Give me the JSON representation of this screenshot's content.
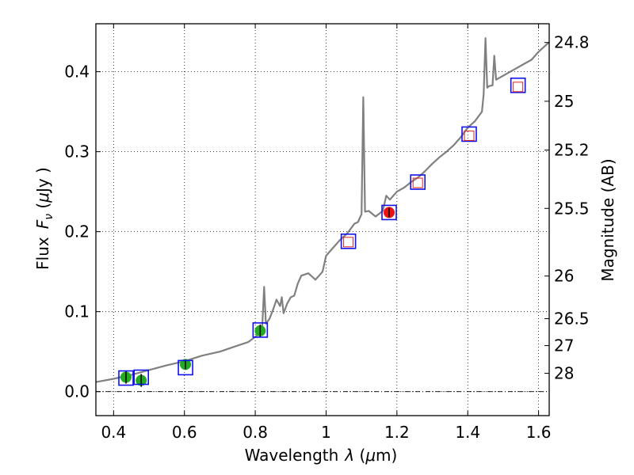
{
  "chart_data": {
    "type": "line",
    "xlabel": "Wavelength",
    "xlabel_symbol": "λ",
    "xlabel_unit_open": " (",
    "xlabel_unit_mu": "μ",
    "xlabel_unit_rest": "m)",
    "ylabel": "Flux",
    "ylabel_symbol": "F",
    "ylabel_subscript": "ν",
    "ylabel_unit_open": "  (",
    "ylabel_unit_mu": "μ",
    "ylabel_unit_rest": "Jy )",
    "y2label": "Magnitude (AB)",
    "xlim": [
      0.35,
      1.63
    ],
    "ylim": [
      -0.03,
      0.46
    ],
    "grid": true,
    "x_ticks": [
      {
        "value": 0.4,
        "label": "0.4"
      },
      {
        "value": 0.6,
        "label": "0.6"
      },
      {
        "value": 0.8,
        "label": "0.8"
      },
      {
        "value": 1.0,
        "label": "1"
      },
      {
        "value": 1.2,
        "label": "1.2"
      },
      {
        "value": 1.4,
        "label": "1.4"
      },
      {
        "value": 1.6,
        "label": "1.6"
      }
    ],
    "y_ticks": [
      {
        "value": 0.0,
        "label": "0.0"
      },
      {
        "value": 0.1,
        "label": "0.1"
      },
      {
        "value": 0.2,
        "label": "0.2"
      },
      {
        "value": 0.3,
        "label": "0.3"
      },
      {
        "value": 0.4,
        "label": "0.4"
      }
    ],
    "mag_ticks": [
      {
        "value": 24.8,
        "label": "24.8"
      },
      {
        "value": 25.0,
        "label": "25"
      },
      {
        "value": 25.2,
        "label": "25.2"
      },
      {
        "value": 25.5,
        "label": "25.5"
      },
      {
        "value": 26.0,
        "label": "26"
      },
      {
        "value": 26.5,
        "label": "26.5"
      },
      {
        "value": 27.0,
        "label": "27"
      },
      {
        "value": 28.0,
        "label": "28"
      }
    ],
    "series": [
      {
        "name": "model-spectrum",
        "color": "#808080",
        "points": [
          [
            0.35,
            0.012
          ],
          [
            0.4,
            0.016
          ],
          [
            0.45,
            0.021
          ],
          [
            0.5,
            0.027
          ],
          [
            0.55,
            0.033
          ],
          [
            0.6,
            0.038
          ],
          [
            0.65,
            0.045
          ],
          [
            0.7,
            0.05
          ],
          [
            0.74,
            0.056
          ],
          [
            0.78,
            0.062
          ],
          [
            0.81,
            0.072
          ],
          [
            0.82,
            0.083
          ],
          [
            0.825,
            0.131
          ],
          [
            0.83,
            0.085
          ],
          [
            0.84,
            0.091
          ],
          [
            0.85,
            0.102
          ],
          [
            0.86,
            0.115
          ],
          [
            0.87,
            0.107
          ],
          [
            0.875,
            0.118
          ],
          [
            0.88,
            0.098
          ],
          [
            0.89,
            0.11
          ],
          [
            0.9,
            0.118
          ],
          [
            0.91,
            0.12
          ],
          [
            0.92,
            0.135
          ],
          [
            0.93,
            0.145
          ],
          [
            0.95,
            0.148
          ],
          [
            0.97,
            0.14
          ],
          [
            0.99,
            0.15
          ],
          [
            1.0,
            0.17
          ],
          [
            1.02,
            0.18
          ],
          [
            1.04,
            0.19
          ],
          [
            1.06,
            0.198
          ],
          [
            1.08,
            0.21
          ],
          [
            1.09,
            0.212
          ],
          [
            1.1,
            0.222
          ],
          [
            1.105,
            0.368
          ],
          [
            1.11,
            0.225
          ],
          [
            1.12,
            0.226
          ],
          [
            1.14,
            0.219
          ],
          [
            1.16,
            0.226
          ],
          [
            1.17,
            0.245
          ],
          [
            1.18,
            0.24
          ],
          [
            1.2,
            0.25
          ],
          [
            1.22,
            0.255
          ],
          [
            1.24,
            0.262
          ],
          [
            1.26,
            0.268
          ],
          [
            1.28,
            0.276
          ],
          [
            1.3,
            0.285
          ],
          [
            1.32,
            0.293
          ],
          [
            1.34,
            0.3
          ],
          [
            1.36,
            0.308
          ],
          [
            1.38,
            0.318
          ],
          [
            1.4,
            0.33
          ],
          [
            1.42,
            0.338
          ],
          [
            1.44,
            0.35
          ],
          [
            1.445,
            0.372
          ],
          [
            1.45,
            0.442
          ],
          [
            1.455,
            0.38
          ],
          [
            1.46,
            0.382
          ],
          [
            1.47,
            0.383
          ],
          [
            1.475,
            0.42
          ],
          [
            1.48,
            0.39
          ],
          [
            1.5,
            0.395
          ],
          [
            1.52,
            0.4
          ],
          [
            1.54,
            0.405
          ],
          [
            1.56,
            0.41
          ],
          [
            1.58,
            0.415
          ],
          [
            1.6,
            0.425
          ],
          [
            1.63,
            0.437
          ]
        ]
      },
      {
        "name": "observed-green",
        "color": "#22aa22",
        "points": [
          [
            0.435,
            0.018
          ],
          [
            0.478,
            0.014
          ],
          [
            0.603,
            0.034
          ],
          [
            0.814,
            0.076
          ]
        ],
        "errors": [
          0.008,
          0.008,
          0.006,
          0.008
        ]
      },
      {
        "name": "observed-red",
        "color": "#ee1111",
        "points": [
          [
            1.178,
            0.224
          ]
        ],
        "errors": [
          0.006
        ]
      },
      {
        "name": "model-synthetic-photometry",
        "color": "#1111ee",
        "points": [
          [
            0.435,
            0.017
          ],
          [
            0.478,
            0.018
          ],
          [
            0.603,
            0.03
          ],
          [
            0.814,
            0.077
          ],
          [
            1.063,
            0.188
          ],
          [
            1.178,
            0.224
          ],
          [
            1.259,
            0.262
          ],
          [
            1.404,
            0.322
          ],
          [
            1.542,
            0.383
          ]
        ]
      },
      {
        "name": "red-open-squares",
        "color": "#dd2222",
        "points": [
          [
            1.063,
            0.187
          ],
          [
            1.259,
            0.261
          ],
          [
            1.404,
            0.32
          ],
          [
            1.542,
            0.381
          ]
        ]
      }
    ]
  }
}
